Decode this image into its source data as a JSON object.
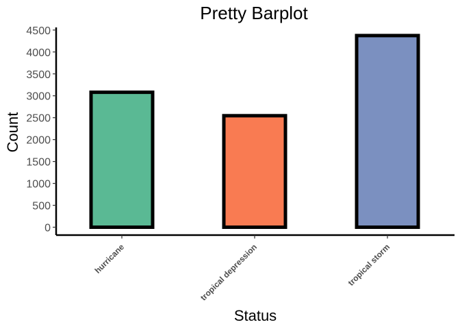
{
  "chart_data": {
    "type": "bar",
    "title": "Pretty Barplot",
    "xlabel": "Status",
    "ylabel": "Count",
    "categories": [
      "hurricane",
      "tropical depression",
      "tropical storm"
    ],
    "values": [
      3080,
      2545,
      4374
    ],
    "colors": [
      "#5ab994",
      "#f97b52",
      "#7b90c0"
    ],
    "bar_outline_color": "#000000",
    "ylim": [
      -180,
      4560
    ],
    "yticks": [
      0,
      500,
      1000,
      1500,
      2000,
      2500,
      3000,
      3500,
      4000,
      4500
    ],
    "grid": false,
    "legend": "none"
  }
}
